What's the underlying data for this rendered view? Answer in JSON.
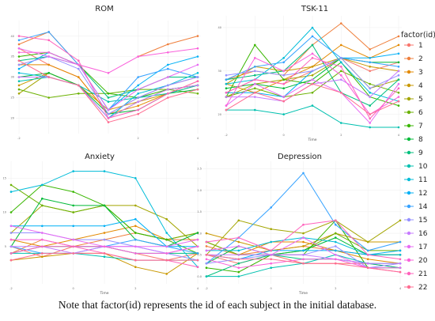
{
  "caption": "Note that factor(id) represents the id of each subject in the initial database.",
  "legend": {
    "title": "factor(id)",
    "entries": [
      {
        "id": "1",
        "color": "#f8766d"
      },
      {
        "id": "2",
        "color": "#ef7f3c"
      },
      {
        "id": "3",
        "color": "#e38900"
      },
      {
        "id": "4",
        "color": "#c99800"
      },
      {
        "id": "5",
        "color": "#a3a500"
      },
      {
        "id": "6",
        "color": "#6bb100"
      },
      {
        "id": "7",
        "color": "#39b600"
      },
      {
        "id": "8",
        "color": "#00ba38"
      },
      {
        "id": "9",
        "color": "#00bf7d"
      },
      {
        "id": "10",
        "color": "#00c0af"
      },
      {
        "id": "11",
        "color": "#00bcd8"
      },
      {
        "id": "12",
        "color": "#00b0f6"
      },
      {
        "id": "14",
        "color": "#35a2ff"
      },
      {
        "id": "15",
        "color": "#9590ff"
      },
      {
        "id": "16",
        "color": "#c77cff"
      },
      {
        "id": "17",
        "color": "#e76bf3"
      },
      {
        "id": "20",
        "color": "#fa62db"
      },
      {
        "id": "21",
        "color": "#ff62bc"
      },
      {
        "id": "22",
        "color": "#ff6c91"
      }
    ]
  },
  "chart_data": [
    {
      "type": "line",
      "title": "ROM",
      "xlabel": "",
      "ylabel": "",
      "x": [
        -2,
        -1,
        0,
        1,
        2,
        3,
        4
      ],
      "xticks": [
        "-2",
        "",
        "",
        "",
        "2",
        "",
        "4"
      ],
      "ylim": [
        17,
        43
      ],
      "yticks": [
        "20",
        "25",
        "30",
        "35",
        "40"
      ],
      "grid": true,
      "series": [
        {
          "id": "1",
          "values": [
            37,
            33,
            30,
            21,
            25,
            28,
            30
          ]
        },
        {
          "id": "2",
          "values": [
            38,
            41,
            33,
            null,
            35,
            38,
            40
          ]
        },
        {
          "id": "3",
          "values": [
            33,
            33,
            30,
            21,
            23,
            26,
            29
          ]
        },
        {
          "id": "4",
          "values": [
            28,
            31,
            28,
            22,
            24,
            26,
            28
          ]
        },
        {
          "id": "5",
          "values": [
            26,
            31,
            28,
            20,
            24,
            27,
            28
          ]
        },
        {
          "id": "6",
          "values": [
            27,
            25,
            26,
            26,
            27,
            27,
            26
          ]
        },
        {
          "id": "7",
          "values": [
            35,
            36,
            33,
            26,
            25,
            27,
            28
          ]
        },
        {
          "id": "8",
          "values": [
            30,
            31,
            28,
            21,
            22,
            26,
            27
          ]
        },
        {
          "id": "9",
          "values": [
            34,
            35,
            33,
            25,
            27,
            30,
            30
          ]
        },
        {
          "id": "10",
          "values": [
            29,
            30,
            28,
            24,
            25,
            26,
            28
          ]
        },
        {
          "id": "11",
          "values": [
            31,
            30,
            28,
            20,
            26,
            28,
            31
          ]
        },
        {
          "id": "12",
          "values": [
            32,
            36,
            33,
            22,
            28,
            33,
            35
          ]
        },
        {
          "id": "14",
          "values": [
            39,
            41,
            33,
            22,
            30,
            32,
            30
          ]
        },
        {
          "id": "15",
          "values": [
            33,
            35,
            32,
            21,
            25,
            28,
            30
          ]
        },
        {
          "id": "16",
          "values": [
            30,
            30,
            28,
            20,
            24,
            27,
            28
          ]
        },
        {
          "id": "17",
          "values": [
            37,
            35,
            33,
            22,
            27,
            30,
            33
          ]
        },
        {
          "id": "20",
          "values": [
            36,
            36,
            33,
            31,
            35,
            36,
            37
          ]
        },
        {
          "id": "21",
          "values": [
            40,
            39,
            34,
            20,
            22,
            26,
            29
          ]
        },
        {
          "id": "22",
          "values": [
            34,
            30,
            28,
            19,
            21,
            25,
            27
          ]
        }
      ]
    },
    {
      "type": "line",
      "title": "TSK-11",
      "xlabel": "Time",
      "ylabel": "",
      "x": [
        -2,
        -1,
        0,
        1,
        2,
        3,
        4
      ],
      "xticks": [
        "-2",
        "",
        "0",
        "",
        "2",
        "",
        "4"
      ],
      "ylim": [
        17,
        42
      ],
      "yticks": [
        "20",
        "30",
        "40"
      ],
      "grid": true,
      "series": [
        {
          "id": "1",
          "values": [
            25,
            28,
            27,
            30,
            33,
            30,
            32
          ]
        },
        {
          "id": "2",
          "values": [
            28,
            30,
            29,
            36,
            41,
            35,
            38
          ]
        },
        {
          "id": "3",
          "values": [
            27,
            25,
            28,
            31,
            36,
            33,
            36
          ]
        },
        {
          "id": "4",
          "values": [
            27,
            31,
            30,
            31,
            33,
            31,
            30
          ]
        },
        {
          "id": "5",
          "values": [
            24,
            27,
            28,
            29,
            33,
            26,
            28
          ]
        },
        {
          "id": "6",
          "values": [
            24,
            26,
            24,
            25,
            30,
            27,
            25
          ]
        },
        {
          "id": "7",
          "values": [
            24,
            36,
            28,
            27,
            32,
            24,
            22
          ]
        },
        {
          "id": "8",
          "values": [
            26,
            27,
            26,
            28,
            33,
            32,
            32
          ]
        },
        {
          "id": "9",
          "values": [
            28,
            29,
            30,
            36,
            25,
            22,
            28
          ]
        },
        {
          "id": "10",
          "values": [
            21,
            21,
            20,
            22,
            18,
            17,
            17
          ]
        },
        {
          "id": "11",
          "values": [
            27,
            28,
            33,
            40,
            32,
            25,
            23
          ]
        },
        {
          "id": "12",
          "values": [
            25,
            25,
            24,
            30,
            33,
            33,
            34
          ]
        },
        {
          "id": "14",
          "values": [
            28,
            31,
            32,
            38,
            33,
            32,
            31
          ]
        },
        {
          "id": "15",
          "values": [
            29,
            30,
            29,
            30,
            33,
            26,
            29
          ]
        },
        {
          "id": "16",
          "values": [
            24,
            24,
            23,
            27,
            28,
            24,
            30
          ]
        },
        {
          "id": "17",
          "values": [
            22,
            27,
            24,
            28,
            25,
            18,
            27
          ]
        },
        {
          "id": "20",
          "values": [
            22,
            33,
            30,
            34,
            29,
            20,
            24
          ]
        },
        {
          "id": "21",
          "values": [
            25,
            28,
            27,
            33,
            31,
            19,
            26
          ]
        },
        {
          "id": "22",
          "values": [
            21,
            25,
            23,
            27,
            25,
            20,
            23
          ]
        }
      ]
    },
    {
      "type": "line",
      "title": "Anxiety",
      "xlabel": "Time",
      "ylabel": "",
      "x": [
        -2,
        -1,
        0,
        1,
        2,
        3,
        4
      ],
      "xticks": [
        "-2",
        "",
        "0",
        "",
        "2",
        "",
        "4"
      ],
      "ylim": [
        0,
        17
      ],
      "yticks": [
        "5",
        "10",
        "15"
      ],
      "grid": true,
      "series": [
        {
          "id": "1",
          "values": [
            5,
            3.5,
            5,
            5,
            4,
            3,
            4
          ]
        },
        {
          "id": "2",
          "values": [
            4,
            6,
            5,
            6,
            7,
            6,
            6
          ]
        },
        {
          "id": "3",
          "values": [
            6,
            5,
            6,
            7,
            8,
            6,
            7
          ]
        },
        {
          "id": "4",
          "values": [
            3,
            3.5,
            4,
            4,
            2,
            1,
            4
          ]
        },
        {
          "id": "5",
          "values": [
            7,
            11,
            10,
            11,
            11,
            9,
            5
          ]
        },
        {
          "id": "6",
          "values": [
            14,
            11,
            10,
            11,
            7,
            6,
            7
          ]
        },
        {
          "id": "7",
          "values": [
            10,
            14,
            13,
            11,
            7,
            6,
            4
          ]
        },
        {
          "id": "8",
          "values": [
            5,
            12,
            11,
            11,
            6,
            5,
            7
          ]
        },
        {
          "id": "9",
          "values": [
            4,
            5,
            5,
            5,
            4,
            4,
            4
          ]
        },
        {
          "id": "10",
          "values": [
            4,
            4,
            4,
            3.5,
            3,
            3,
            3
          ]
        },
        {
          "id": "11",
          "values": [
            13,
            14,
            16,
            16,
            15,
            7,
            2
          ]
        },
        {
          "id": "12",
          "values": [
            8,
            8,
            8,
            8,
            9,
            5,
            5
          ]
        },
        {
          "id": "14",
          "values": [
            5,
            4,
            4,
            5,
            6,
            5,
            4
          ]
        },
        {
          "id": "15",
          "values": [
            7,
            7,
            6,
            6,
            5,
            4,
            3
          ]
        },
        {
          "id": "16",
          "values": [
            5,
            5,
            4,
            5,
            5,
            4,
            5
          ]
        },
        {
          "id": "17",
          "values": [
            8,
            7,
            6,
            5,
            5,
            5,
            6
          ]
        },
        {
          "id": "20",
          "values": [
            6,
            6,
            5,
            5,
            4,
            4,
            5
          ]
        },
        {
          "id": "21",
          "values": [
            4,
            5,
            5,
            4,
            3,
            3,
            2
          ]
        },
        {
          "id": "22",
          "values": [
            3,
            4,
            4,
            4,
            3,
            3,
            3
          ]
        }
      ]
    },
    {
      "type": "line",
      "title": "Depression",
      "xlabel": "Time",
      "ylabel": "",
      "x": [
        -2,
        -1,
        0,
        1,
        2,
        3,
        4
      ],
      "xticks": [
        "-2",
        "",
        "0",
        "",
        "2",
        "",
        "4"
      ],
      "ylim": [
        -0.1,
        2.6
      ],
      "yticks": [
        "0.0",
        "0.5",
        "1.0",
        "1.5",
        "2.0",
        "2.5"
      ],
      "grid": true,
      "series": [
        {
          "id": "1",
          "values": [
            0.5,
            0.3,
            0.5,
            0.3,
            0.3,
            0.3,
            0.2
          ]
        },
        {
          "id": "2",
          "values": [
            0.7,
            0.5,
            0.6,
            0.7,
            0.6,
            0.5,
            0.5
          ]
        },
        {
          "id": "3",
          "values": [
            0.8,
            0.5,
            0.8,
            0.8,
            0.6,
            0.4,
            0.3
          ]
        },
        {
          "id": "4",
          "values": [
            1.0,
            0.8,
            0.6,
            0.7,
            1.0,
            0.8,
            0.8
          ]
        },
        {
          "id": "5",
          "values": [
            0.5,
            1.3,
            1.1,
            1.0,
            1.3,
            0.8,
            1.3
          ]
        },
        {
          "id": "6",
          "values": [
            0.8,
            0.5,
            0.5,
            0.6,
            1.0,
            0.6,
            0.6
          ]
        },
        {
          "id": "7",
          "values": [
            0.2,
            0.1,
            0.5,
            0.5,
            1.3,
            0.2,
            0.2
          ]
        },
        {
          "id": "8",
          "values": [
            0.3,
            0.7,
            0.5,
            0.6,
            0.9,
            0.5,
            0.5
          ]
        },
        {
          "id": "9",
          "values": [
            0,
            0.3,
            0.5,
            0.4,
            0.4,
            0.3,
            0.2
          ]
        },
        {
          "id": "10",
          "values": [
            0,
            0,
            0.2,
            0.3,
            0.5,
            0.3,
            0.3
          ]
        },
        {
          "id": "11",
          "values": [
            0.6,
            0.6,
            0.8,
            0.9,
            0.8,
            0.5,
            0.5
          ]
        },
        {
          "id": "12",
          "values": [
            0.5,
            0.4,
            0.6,
            0.6,
            0.6,
            0.5,
            0.6
          ]
        },
        {
          "id": "14",
          "values": [
            0.3,
            0.9,
            1.6,
            2.4,
            1.2,
            0.6,
            0.8
          ]
        },
        {
          "id": "15",
          "values": [
            0.3,
            0.4,
            0.5,
            0.5,
            0.7,
            0.2,
            0.3
          ]
        },
        {
          "id": "16",
          "values": [
            0.5,
            0.5,
            0.5,
            0.5,
            0.4,
            0.3,
            0.3
          ]
        },
        {
          "id": "17",
          "values": [
            0.6,
            0.7,
            0.5,
            0.9,
            0.5,
            0.2,
            0.2
          ]
        },
        {
          "id": "20",
          "values": [
            0.4,
            0.2,
            0.3,
            0.4,
            0.4,
            0.2,
            0.1
          ]
        },
        {
          "id": "21",
          "values": [
            0.8,
            0.9,
            0.6,
            1.2,
            1.3,
            0.5,
            0.4
          ]
        },
        {
          "id": "22",
          "values": [
            0.5,
            0.4,
            0.4,
            0.3,
            0.3,
            0.2,
            0.1
          ]
        }
      ]
    }
  ]
}
